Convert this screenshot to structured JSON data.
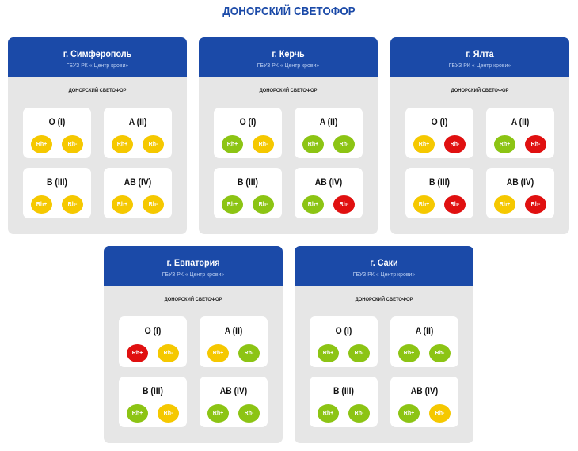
{
  "title": "ДОНОРСКИЙ СВЕТОФОР",
  "colors": {
    "header": "#1b4aa8",
    "yellow": "#f5c800",
    "green": "#8cc414",
    "red": "#e01010",
    "card_bg": "#e6e6e6"
  },
  "cards": [
    {
      "city": "г. Симферополь",
      "org": "ГБУЗ РК « Центр крови»",
      "subtitle": "ДОНОРСКИЙ СВЕТОФОР",
      "groups": [
        {
          "name": "O (I)",
          "rh_pos": {
            "label": "Rh+",
            "status": "yellow"
          },
          "rh_neg": {
            "label": "Rh-",
            "status": "yellow"
          }
        },
        {
          "name": "A (II)",
          "rh_pos": {
            "label": "Rh+",
            "status": "yellow"
          },
          "rh_neg": {
            "label": "Rh-",
            "status": "yellow"
          }
        },
        {
          "name": "B (III)",
          "rh_pos": {
            "label": "Rh+",
            "status": "yellow"
          },
          "rh_neg": {
            "label": "Rh-",
            "status": "yellow"
          }
        },
        {
          "name": "AB (IV)",
          "rh_pos": {
            "label": "Rh+",
            "status": "yellow"
          },
          "rh_neg": {
            "label": "Rh-",
            "status": "yellow"
          }
        }
      ]
    },
    {
      "city": "г. Керчь",
      "org": "ГБУЗ РК « Центр крови»",
      "subtitle": "ДОНОРСКИЙ СВЕТОФОР",
      "groups": [
        {
          "name": "O (I)",
          "rh_pos": {
            "label": "Rh+",
            "status": "green"
          },
          "rh_neg": {
            "label": "Rh-",
            "status": "yellow"
          }
        },
        {
          "name": "A (II)",
          "rh_pos": {
            "label": "Rh+",
            "status": "green"
          },
          "rh_neg": {
            "label": "Rh-",
            "status": "green"
          }
        },
        {
          "name": "B (III)",
          "rh_pos": {
            "label": "Rh+",
            "status": "green"
          },
          "rh_neg": {
            "label": "Rh-",
            "status": "green"
          }
        },
        {
          "name": "AB (IV)",
          "rh_pos": {
            "label": "Rh+",
            "status": "green"
          },
          "rh_neg": {
            "label": "Rh-",
            "status": "red"
          }
        }
      ]
    },
    {
      "city": "г. Ялта",
      "org": "ГБУЗ РК « Центр крови»",
      "subtitle": "ДОНОРСКИЙ СВЕТОФОР",
      "groups": [
        {
          "name": "O (I)",
          "rh_pos": {
            "label": "Rh+",
            "status": "yellow"
          },
          "rh_neg": {
            "label": "Rh-",
            "status": "red"
          }
        },
        {
          "name": "A (II)",
          "rh_pos": {
            "label": "Rh+",
            "status": "green"
          },
          "rh_neg": {
            "label": "Rh-",
            "status": "red"
          }
        },
        {
          "name": "B (III)",
          "rh_pos": {
            "label": "Rh+",
            "status": "yellow"
          },
          "rh_neg": {
            "label": "Rh-",
            "status": "red"
          }
        },
        {
          "name": "AB (IV)",
          "rh_pos": {
            "label": "Rh+",
            "status": "yellow"
          },
          "rh_neg": {
            "label": "Rh-",
            "status": "red"
          }
        }
      ]
    },
    {
      "city": "г. Евпатория",
      "org": "ГБУЗ РК « Центр крови»",
      "subtitle": "ДОНОРСКИЙ СВЕТОФОР",
      "groups": [
        {
          "name": "O (I)",
          "rh_pos": {
            "label": "Rh+",
            "status": "red"
          },
          "rh_neg": {
            "label": "Rh-",
            "status": "yellow"
          }
        },
        {
          "name": "A (II)",
          "rh_pos": {
            "label": "Rh+",
            "status": "yellow"
          },
          "rh_neg": {
            "label": "Rh-",
            "status": "green"
          }
        },
        {
          "name": "B (III)",
          "rh_pos": {
            "label": "Rh+",
            "status": "green"
          },
          "rh_neg": {
            "label": "Rh-",
            "status": "yellow"
          }
        },
        {
          "name": "AB (IV)",
          "rh_pos": {
            "label": "Rh+",
            "status": "green"
          },
          "rh_neg": {
            "label": "Rh-",
            "status": "green"
          }
        }
      ]
    },
    {
      "city": "г. Саки",
      "org": "ГБУЗ РК « Центр крови»",
      "subtitle": "ДОНОРСКИЙ СВЕТОФОР",
      "groups": [
        {
          "name": "O (I)",
          "rh_pos": {
            "label": "Rh+",
            "status": "green"
          },
          "rh_neg": {
            "label": "Rh-",
            "status": "green"
          }
        },
        {
          "name": "A (II)",
          "rh_pos": {
            "label": "Rh+",
            "status": "green"
          },
          "rh_neg": {
            "label": "Rh-",
            "status": "green"
          }
        },
        {
          "name": "B (III)",
          "rh_pos": {
            "label": "Rh+",
            "status": "green"
          },
          "rh_neg": {
            "label": "Rh-",
            "status": "green"
          }
        },
        {
          "name": "AB (IV)",
          "rh_pos": {
            "label": "Rh+",
            "status": "green"
          },
          "rh_neg": {
            "label": "Rh-",
            "status": "yellow"
          }
        }
      ]
    }
  ]
}
